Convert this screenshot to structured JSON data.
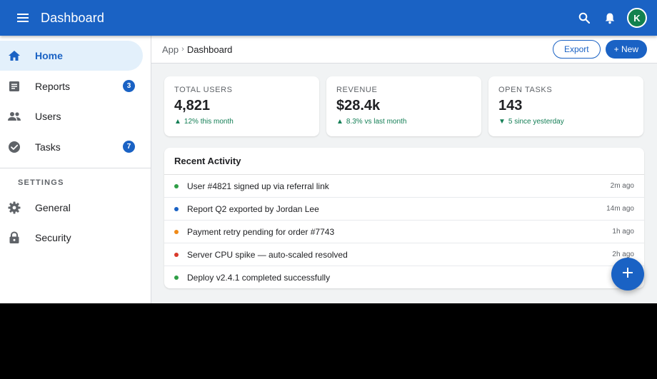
{
  "appbar": {
    "title": "Dashboard",
    "menu_icon": "menu-icon",
    "search_icon": "search-icon",
    "notifications_icon": "bell-icon",
    "avatar_initial": "K",
    "color": "#1a62c4",
    "avatar_color": "#12814f"
  },
  "sidebar": {
    "items": [
      {
        "label": "Home",
        "icon": "home-icon",
        "active": true
      },
      {
        "label": "Reports",
        "icon": "report-icon",
        "badge": "3"
      },
      {
        "label": "Users",
        "icon": "users-icon"
      },
      {
        "label": "Tasks",
        "icon": "check-circle-icon",
        "badge": "7"
      }
    ],
    "settings_title": "SETTINGS",
    "settings_items": [
      {
        "label": "General",
        "icon": "gear-icon"
      },
      {
        "label": "Security",
        "icon": "lock-icon"
      }
    ]
  },
  "breadcrumb": {
    "root": "App",
    "separator": "›",
    "current": "Dashboard"
  },
  "toolbar": {
    "export_label": "Export",
    "new_label": "+ New"
  },
  "stats": [
    {
      "label": "TOTAL USERS",
      "value": "4,821",
      "delta": "12% this month",
      "direction": "up"
    },
    {
      "label": "REVENUE",
      "value": "$28.4k",
      "delta": "8.3% vs last month",
      "direction": "up"
    },
    {
      "label": "OPEN TASKS",
      "value": "143",
      "delta": "5 since yesterday",
      "direction": "down"
    }
  ],
  "activity": {
    "title": "Recent Activity",
    "rows": [
      {
        "text": "User #4821 signed up via referral link",
        "time": "2m ago",
        "color": "#2e9e46"
      },
      {
        "text": "Report Q2 exported by Jordan Lee",
        "time": "14m ago",
        "color": "#1a62c4"
      },
      {
        "text": "Payment retry pending for order #7743",
        "time": "1h ago",
        "color": "#ef8a17"
      },
      {
        "text": "Server CPU spike — auto-scaled resolved",
        "time": "2h ago",
        "color": "#d93a2b"
      },
      {
        "text": "Deploy v2.4.1 completed successfully",
        "time": "",
        "color": "#2e9e46"
      }
    ]
  },
  "fab": {
    "label": "+",
    "icon": "plus-icon"
  }
}
